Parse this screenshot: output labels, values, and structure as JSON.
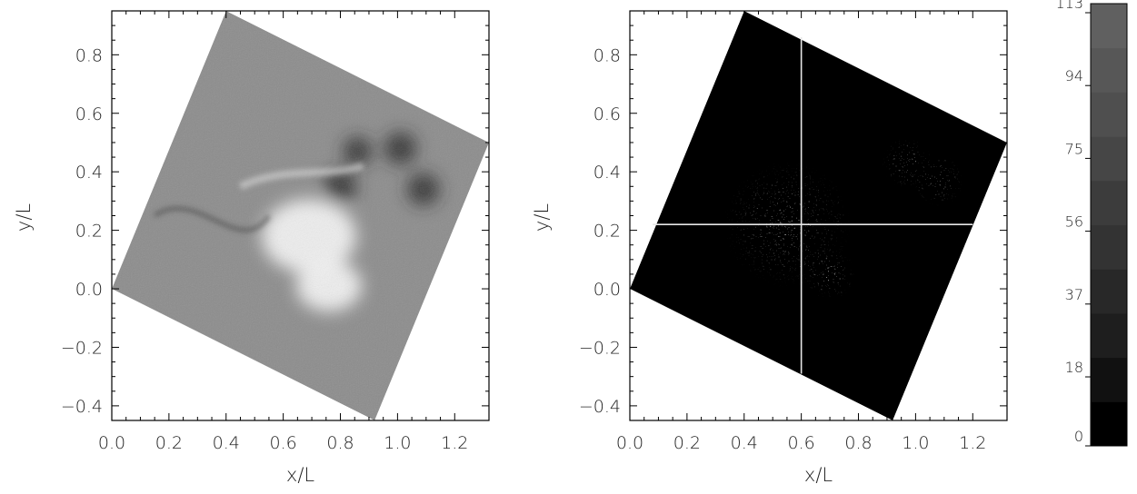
{
  "colors": {
    "background": "#ffffff",
    "axis": "#000000",
    "left_panel_fill": "#8c8c8c",
    "right_panel_fill": "#000000",
    "crosshair": "#e6e6e6"
  },
  "chart_data": [
    {
      "type": "heatmap",
      "panel": "left",
      "xlabel": "x/L",
      "ylabel": "y/L",
      "xlim": [
        0.0,
        1.32
      ],
      "ylim": [
        -0.45,
        0.95
      ],
      "xticks": [
        "0.0",
        "0.2",
        "0.4",
        "0.6",
        "0.8",
        "1.0",
        "1.2"
      ],
      "yticks": [
        "-0.4",
        "-0.2",
        "0.0",
        "0.2",
        "0.4",
        "0.6",
        "0.8"
      ],
      "colormap": "grayscale",
      "region_corners": [
        [
          0.0,
          0.0
        ],
        [
          0.4,
          0.95
        ],
        [
          1.32,
          0.5
        ],
        [
          0.92,
          -0.45
        ]
      ],
      "features": [
        {
          "kind": "bright",
          "x": 0.69,
          "y": 0.18
        },
        {
          "kind": "bright",
          "x": 0.76,
          "y": 0.01
        },
        {
          "kind": "dark",
          "x": 0.86,
          "y": 0.47
        },
        {
          "kind": "dark",
          "x": 1.09,
          "y": 0.34
        },
        {
          "kind": "dark",
          "x": 1.01,
          "y": 0.48
        },
        {
          "kind": "dark",
          "x": 0.8,
          "y": 0.35
        }
      ]
    },
    {
      "type": "heatmap",
      "panel": "right",
      "xlabel": "x/L",
      "ylabel": "y/L",
      "xlim": [
        0.0,
        1.32
      ],
      "ylim": [
        -0.45,
        0.95
      ],
      "xticks": [
        "0.0",
        "0.2",
        "0.4",
        "0.6",
        "0.8",
        "1.0",
        "1.2"
      ],
      "yticks": [
        "-0.4",
        "-0.2",
        "0.0",
        "0.2",
        "0.4",
        "0.6",
        "0.8"
      ],
      "colormap": "grayscale",
      "region_corners": [
        [
          0.0,
          0.0
        ],
        [
          0.4,
          0.95
        ],
        [
          1.32,
          0.5
        ],
        [
          0.92,
          -0.45
        ]
      ],
      "crosshair": {
        "x": 0.6,
        "y": 0.22,
        "x_range": [
          0.08,
          1.2
        ],
        "y_range": [
          -0.29,
          0.86
        ]
      },
      "features": [
        {
          "kind": "speckle-cluster",
          "x": 0.55,
          "y": 0.22
        },
        {
          "kind": "speckle-cluster",
          "x": 0.97,
          "y": 0.43
        },
        {
          "kind": "speckle-cluster",
          "x": 1.08,
          "y": 0.37
        },
        {
          "kind": "speckle-cluster",
          "x": 0.7,
          "y": 0.05
        }
      ]
    },
    {
      "type": "colorbar",
      "labels": [
        "0",
        "18",
        "37",
        "56",
        "75",
        "94",
        "113"
      ],
      "values": [
        0,
        18,
        37,
        56,
        75,
        94,
        113
      ],
      "range": [
        0,
        113
      ],
      "band_colors": [
        "#000000",
        "#111111",
        "#1e1e1e",
        "#282828",
        "#333333",
        "#3c3c3c",
        "#464646",
        "#4f4f4f",
        "#575757",
        "#606060"
      ]
    }
  ]
}
